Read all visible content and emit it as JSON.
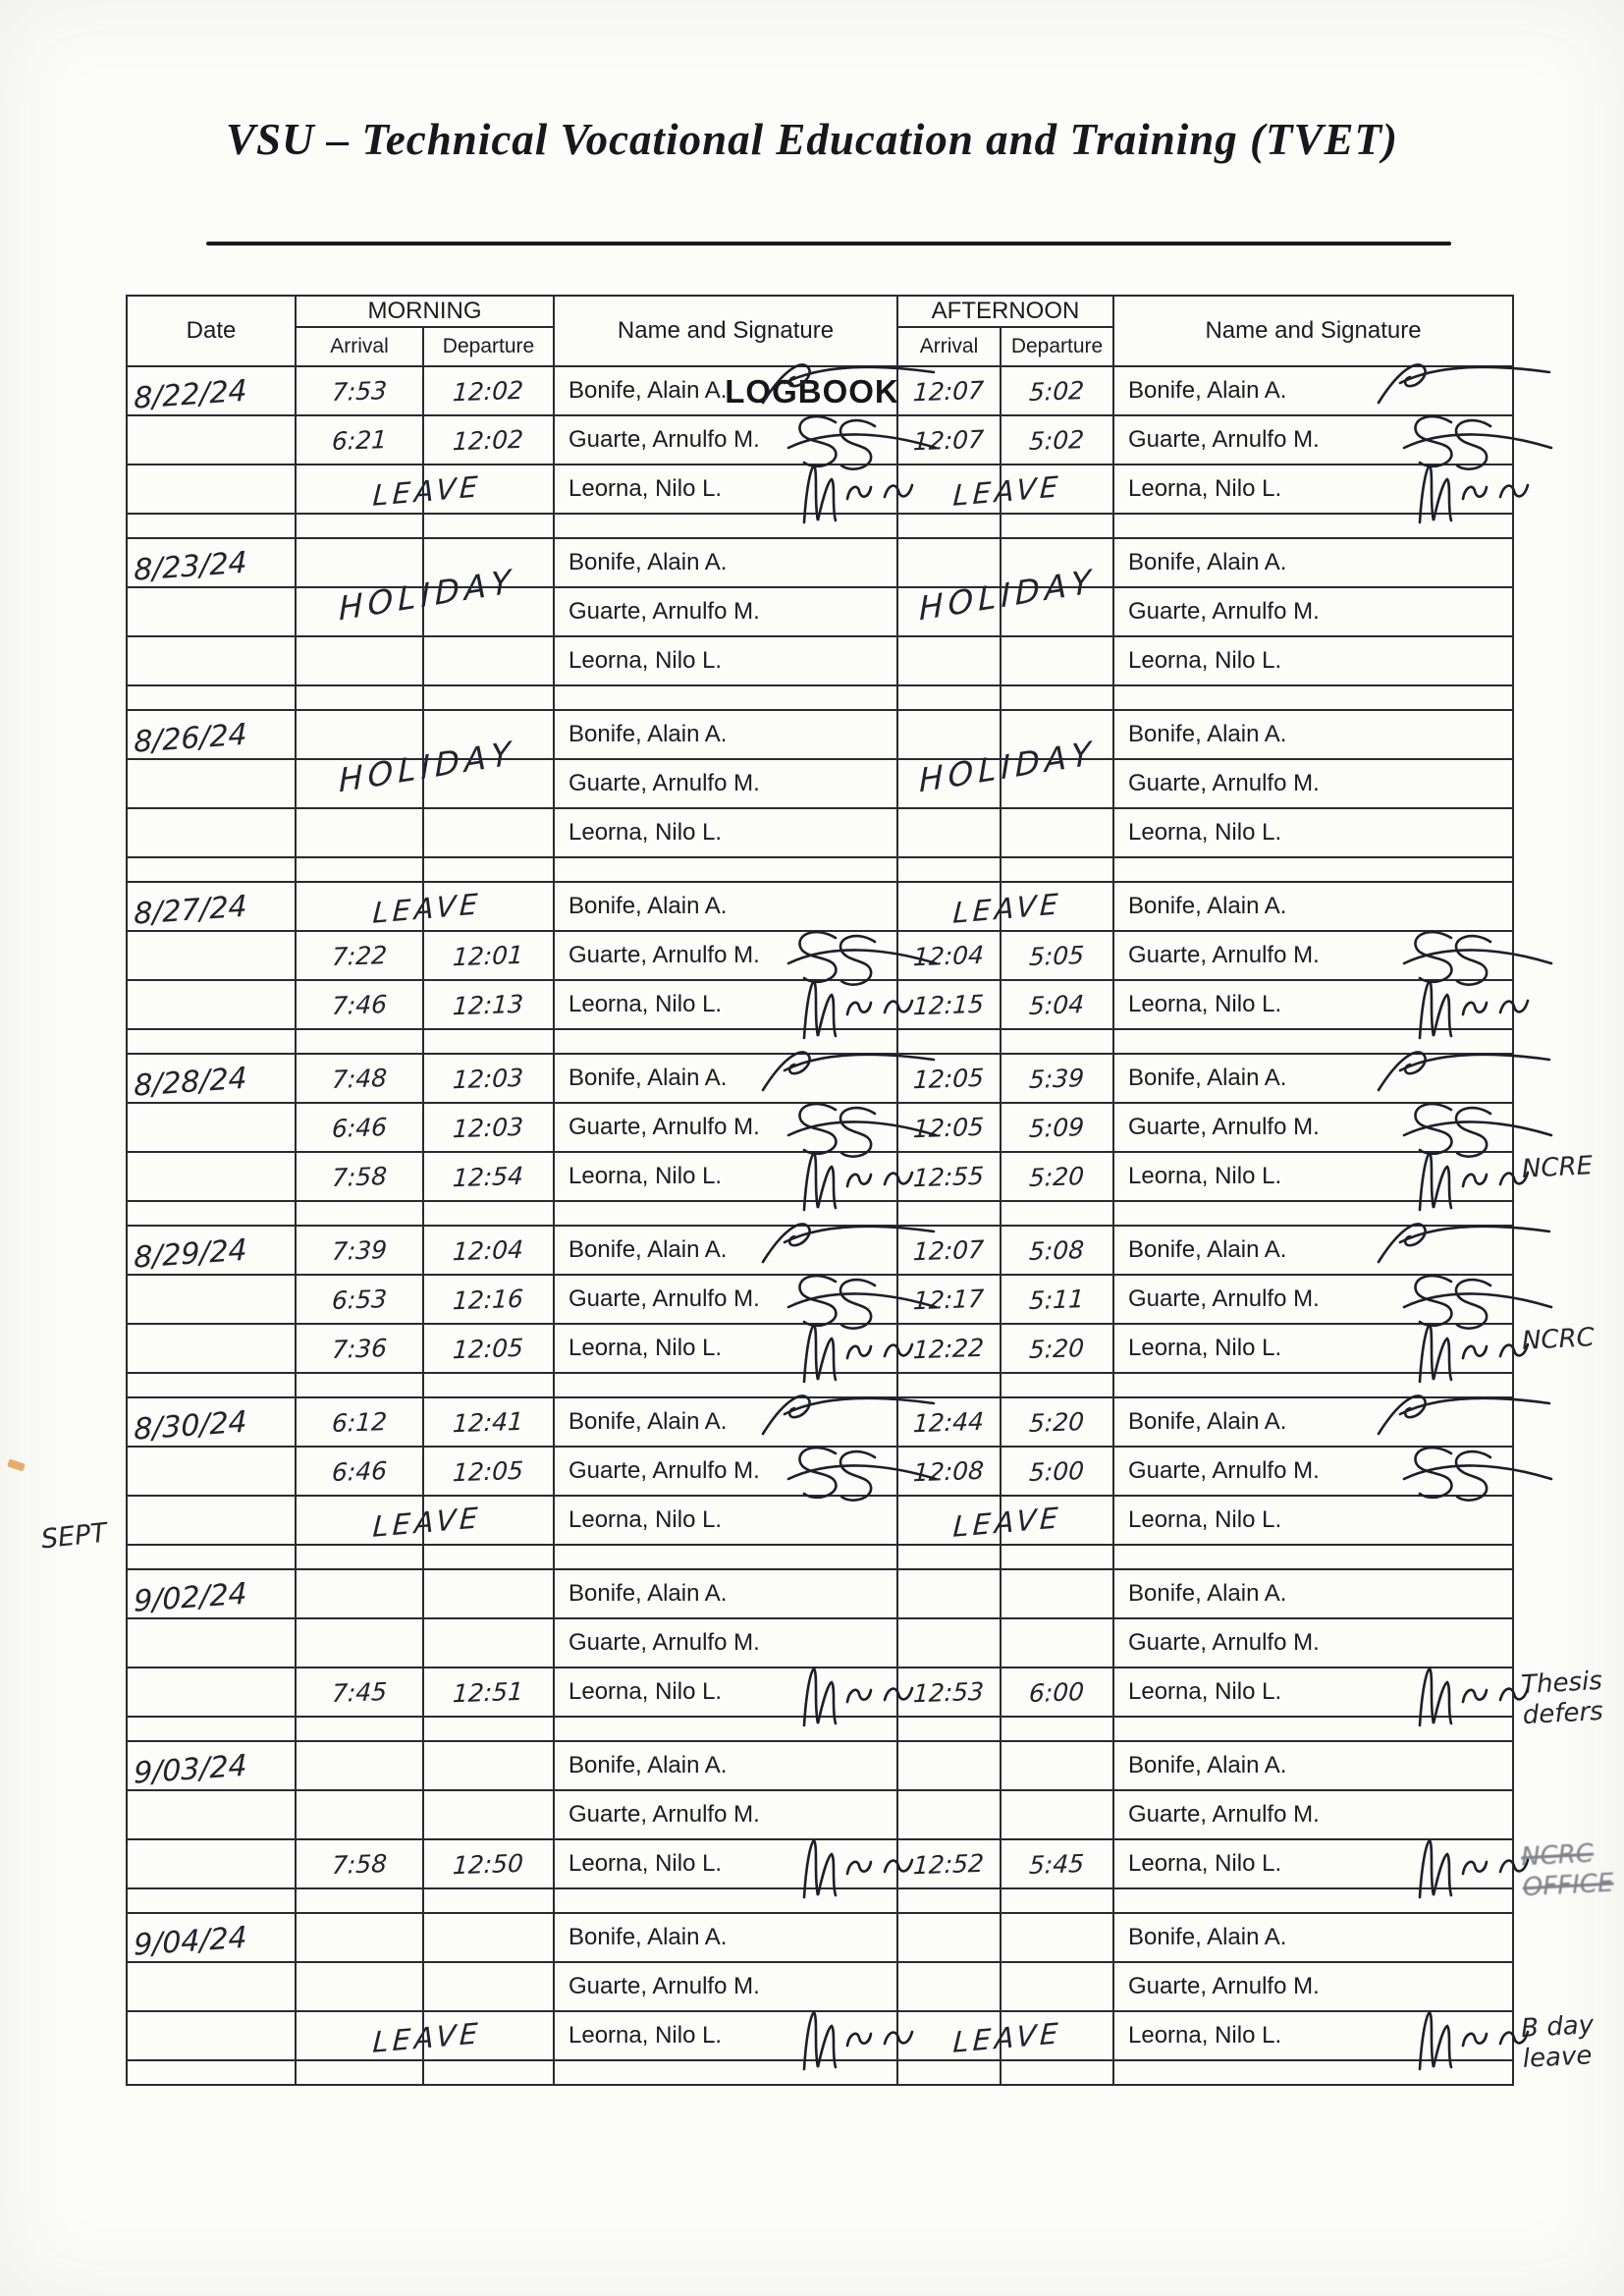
{
  "page": {
    "title": "VSU – Technical Vocational Education and Training (TVET)",
    "doc_title": "LOGBOOK",
    "ink_color": "#23232f",
    "paper_color": "#fcfcf8"
  },
  "table": {
    "headers": {
      "date": "Date",
      "morning": "MORNING",
      "afternoon": "AFTERNOON",
      "arrival": "Arrival",
      "departure": "Departure",
      "name_signature": "Name and Signature"
    },
    "blocks": [
      {
        "date": "8/22/24",
        "rows": [
          {
            "name": "Bonife, Alain A.",
            "m_arr": "7:53",
            "m_dep": "12:02",
            "a_arr": "12:07",
            "a_dep": "5:02",
            "sig_m": "bonife",
            "sig_a": "bonife"
          },
          {
            "name": "Guarte, Arnulfo M.",
            "m_arr": "6:21",
            "m_dep": "12:02",
            "a_arr": "12:07",
            "a_dep": "5:02",
            "sig_m": "guarte",
            "sig_a": "guarte"
          },
          {
            "name": "Leorna, Nilo L.",
            "m_note": "LEAVE",
            "a_note": "LEAVE",
            "sig_m": "leorna",
            "sig_a": "leorna"
          }
        ]
      },
      {
        "date": "8/23/24",
        "span_note_m": "HOLIDAY",
        "span_note_a": "HOLIDAY",
        "rows": [
          {
            "name": "Bonife, Alain A."
          },
          {
            "name": "Guarte, Arnulfo M."
          },
          {
            "name": "Leorna, Nilo L."
          }
        ]
      },
      {
        "date": "8/26/24",
        "span_note_m": "HOLIDAY",
        "span_note_a": "HOLIDAY",
        "rows": [
          {
            "name": "Bonife, Alain A."
          },
          {
            "name": "Guarte, Arnulfo M."
          },
          {
            "name": "Leorna, Nilo L."
          }
        ]
      },
      {
        "date": "8/27/24",
        "rows": [
          {
            "name": "Bonife, Alain A.",
            "m_note": "LEAVE",
            "a_note": "LEAVE"
          },
          {
            "name": "Guarte, Arnulfo M.",
            "m_arr": "7:22",
            "m_dep": "12:01",
            "a_arr": "12:04",
            "a_dep": "5:05",
            "sig_m": "guarte",
            "sig_a": "guarte"
          },
          {
            "name": "Leorna, Nilo L.",
            "m_arr": "7:46",
            "m_dep": "12:13",
            "a_arr": "12:15",
            "a_dep": "5:04",
            "sig_m": "leorna",
            "sig_a": "leorna"
          }
        ]
      },
      {
        "date": "8/28/24",
        "side_note": "NCRE",
        "rows": [
          {
            "name": "Bonife, Alain A.",
            "m_arr": "7:48",
            "m_dep": "12:03",
            "a_arr": "12:05",
            "a_dep": "5:39",
            "sig_m": "bonife",
            "sig_a": "bonife"
          },
          {
            "name": "Guarte, Arnulfo M.",
            "m_arr": "6:46",
            "m_dep": "12:03",
            "a_arr": "12:05",
            "a_dep": "5:09",
            "sig_m": "guarte",
            "sig_a": "guarte"
          },
          {
            "name": "Leorna, Nilo L.",
            "m_arr": "7:58",
            "m_dep": "12:54",
            "a_arr": "12:55",
            "a_dep": "5:20",
            "sig_m": "leorna",
            "sig_a": "leorna"
          }
        ]
      },
      {
        "date": "8/29/24",
        "side_note": "NCRC",
        "rows": [
          {
            "name": "Bonife, Alain A.",
            "m_arr": "7:39",
            "m_dep": "12:04",
            "a_arr": "12:07",
            "a_dep": "5:08",
            "sig_m": "bonife",
            "sig_a": "bonife"
          },
          {
            "name": "Guarte, Arnulfo M.",
            "m_arr": "6:53",
            "m_dep": "12:16",
            "a_arr": "12:17",
            "a_dep": "5:11",
            "sig_m": "guarte",
            "sig_a": "guarte"
          },
          {
            "name": "Leorna, Nilo L.",
            "m_arr": "7:36",
            "m_dep": "12:05",
            "a_arr": "12:22",
            "a_dep": "5:20",
            "sig_m": "leorna",
            "sig_a": "leorna"
          }
        ]
      },
      {
        "date": "8/30/24",
        "rows": [
          {
            "name": "Bonife, Alain A.",
            "m_arr": "6:12",
            "m_dep": "12:41",
            "a_arr": "12:44",
            "a_dep": "5:20",
            "sig_m": "bonife",
            "sig_a": "bonife"
          },
          {
            "name": "Guarte, Arnulfo M.",
            "m_arr": "6:46",
            "m_dep": "12:05",
            "a_arr": "12:08",
            "a_dep": "5:00",
            "sig_m": "guarte",
            "sig_a": "guarte"
          },
          {
            "name": "Leorna, Nilo L.",
            "m_note": "LEAVE",
            "a_note": "LEAVE"
          }
        ]
      },
      {
        "date": "9/02/24",
        "left_note": "SEPT",
        "side_note": "Thesis\ndefers",
        "rows": [
          {
            "name": "Bonife, Alain A."
          },
          {
            "name": "Guarte, Arnulfo M."
          },
          {
            "name": "Leorna, Nilo L.",
            "m_arr": "7:45",
            "m_dep": "12:51",
            "a_arr": "12:53",
            "a_dep": "6:00",
            "sig_m": "leorna",
            "sig_a": "leorna"
          }
        ]
      },
      {
        "date": "9/03/24",
        "side_note": "NCRC\nOFFICE",
        "side_note_struck": true,
        "rows": [
          {
            "name": "Bonife, Alain A."
          },
          {
            "name": "Guarte, Arnulfo M."
          },
          {
            "name": "Leorna, Nilo L.",
            "m_arr": "7:58",
            "m_dep": "12:50",
            "a_arr": "12:52",
            "a_dep": "5:45",
            "sig_m": "leorna",
            "sig_a": "leorna"
          }
        ]
      },
      {
        "date": "9/04/24",
        "side_note": "B day\nleave",
        "rows": [
          {
            "name": "Bonife, Alain A."
          },
          {
            "name": "Guarte, Arnulfo M."
          },
          {
            "name": "Leorna, Nilo L.",
            "m_note": "LEAVE",
            "a_note": "LEAVE",
            "sig_m": "leorna",
            "sig_a": "leorna"
          }
        ]
      }
    ]
  }
}
